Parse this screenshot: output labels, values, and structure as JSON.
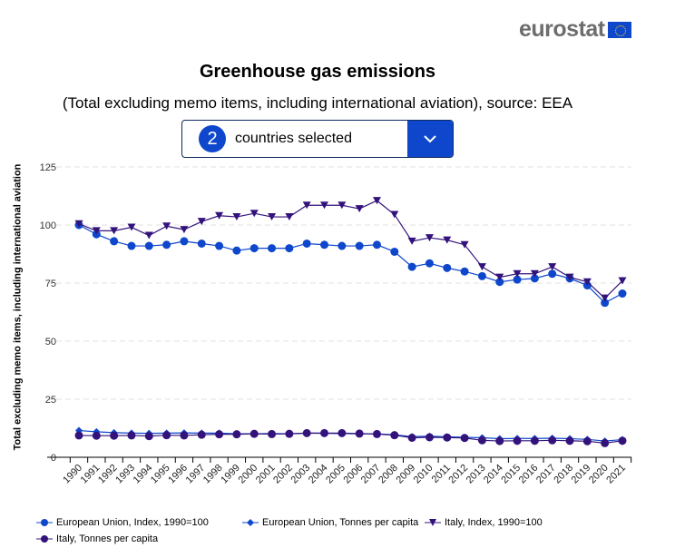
{
  "logo": {
    "text": "eurostat"
  },
  "title": "Greenhouse gas emissions",
  "subtitle": "(Total excluding memo items, including international aviation), source: EEA",
  "selector": {
    "count": "2",
    "label": "countries selected",
    "icon": "chevron-down-icon"
  },
  "chart_data": {
    "type": "line",
    "ylabel": "Total excluding memo items, including international aviation",
    "ylim": [
      0,
      125
    ],
    "yticks": [
      0,
      25,
      50,
      75,
      100,
      125
    ],
    "grid": true,
    "legend_placement": "bottom",
    "x": [
      "1990",
      "1991",
      "1992",
      "1993",
      "1994",
      "1995",
      "1996",
      "1997",
      "1998",
      "1999",
      "2000",
      "2001",
      "2002",
      "2003",
      "2004",
      "2005",
      "2006",
      "2007",
      "2008",
      "2009",
      "2010",
      "2011",
      "2012",
      "2013",
      "2014",
      "2015",
      "2016",
      "2017",
      "2018",
      "2019",
      "2020",
      "2021"
    ],
    "series": [
      {
        "name": "European Union, Index, 1990=100",
        "color": "#0e47cb",
        "marker": "circle",
        "values": [
          100,
          96,
          93,
          91,
          91,
          91.5,
          93,
          92,
          91,
          89,
          90,
          90,
          90,
          92,
          91.5,
          91,
          91,
          91.5,
          88.5,
          82,
          83.5,
          81.5,
          80,
          78,
          75.5,
          76.5,
          77,
          79,
          77,
          74,
          66.5,
          70.5
        ]
      },
      {
        "name": "European Union, Tonnes per capita",
        "color": "#0e47cb",
        "marker": "diamond",
        "values": [
          11.5,
          11,
          10.6,
          10.4,
          10.3,
          10.4,
          10.5,
          10.4,
          10.4,
          10.1,
          10.1,
          10.2,
          10.1,
          10.4,
          10.3,
          10.2,
          10.1,
          10.1,
          9.7,
          8.9,
          9.1,
          8.8,
          8.6,
          8.4,
          8.0,
          8.1,
          8.1,
          8.2,
          8.0,
          7.7,
          7.0,
          7.6
        ]
      },
      {
        "name": "Italy, Index, 1990=100",
        "color": "#33137b",
        "marker": "triangle-down",
        "values": [
          100.5,
          97.5,
          97.5,
          99,
          95.5,
          99.5,
          98,
          101.5,
          104,
          103.5,
          105,
          103.5,
          103.5,
          108.5,
          108.5,
          108.5,
          107,
          110.5,
          104.5,
          93,
          94.5,
          93.5,
          91.5,
          82,
          77.5,
          79,
          79,
          82,
          77.5,
          75.5,
          68.5,
          76
        ]
      },
      {
        "name": "Italy, Tonnes per capita",
        "color": "#33137b",
        "marker": "circle",
        "values": [
          9.4,
          9.3,
          9.3,
          9.4,
          9.1,
          9.5,
          9.4,
          9.7,
          9.9,
          9.9,
          10.1,
          10.0,
          10.1,
          10.4,
          10.4,
          10.4,
          10.2,
          10.0,
          9.5,
          8.4,
          8.6,
          8.5,
          8.3,
          7.3,
          7.0,
          7.1,
          7.1,
          7.3,
          7.1,
          6.9,
          6.1,
          7.1
        ]
      }
    ]
  }
}
